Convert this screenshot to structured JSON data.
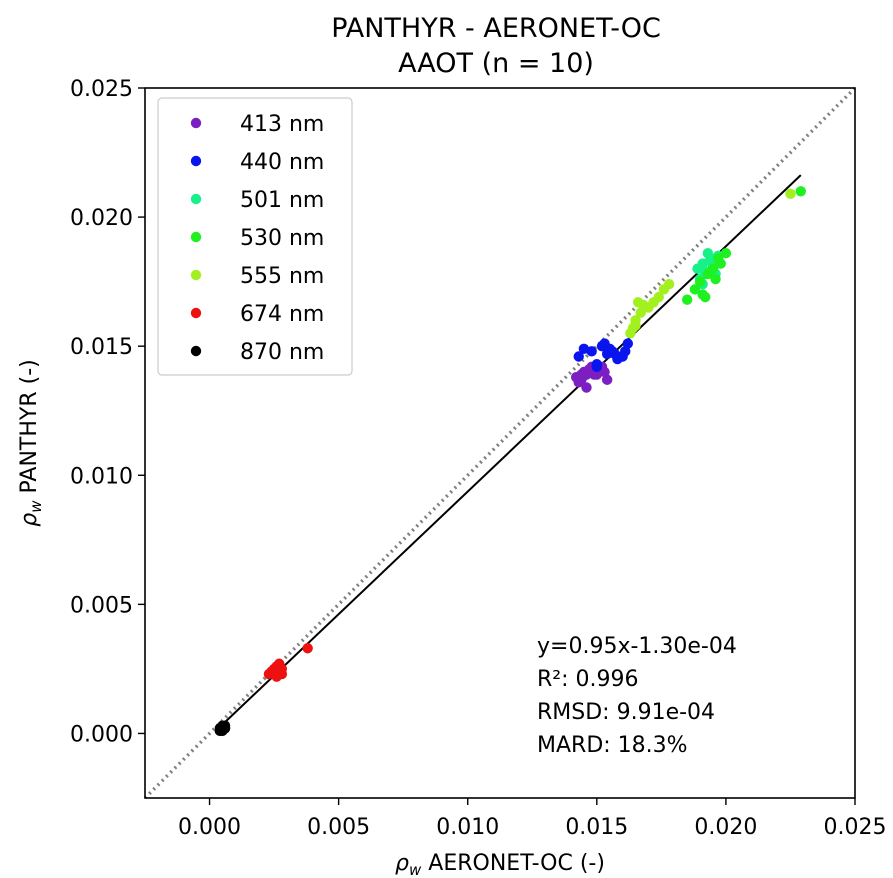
{
  "chart_data": {
    "type": "scatter",
    "title": "PANTHYR - AERONET-OC",
    "subtitle": "AAOT (n = 10)",
    "xlabel_symbol": "ρ",
    "xlabel_sub": "w",
    "xlabel_text": " AERONET-OC (-)",
    "ylabel_symbol": "ρ",
    "ylabel_sub": "w",
    "ylabel_text": " PANTHYR (-)",
    "xlim": [
      -0.0025,
      0.025
    ],
    "ylim": [
      -0.0025,
      0.025
    ],
    "x_ticks": [
      0.0,
      0.005,
      0.01,
      0.015,
      0.02,
      0.025
    ],
    "x_tick_labels": [
      "0.000",
      "0.005",
      "0.010",
      "0.015",
      "0.020",
      "0.025"
    ],
    "y_ticks": [
      0.0,
      0.005,
      0.01,
      0.015,
      0.02,
      0.025
    ],
    "y_tick_labels": [
      "0.000",
      "0.005",
      "0.010",
      "0.015",
      "0.020",
      "0.025"
    ],
    "grid": false,
    "legend_position": "top-left",
    "one_to_one_line": {
      "style": "dotted",
      "color": "#808080"
    },
    "fit_line": {
      "slope": 0.95,
      "intercept": -0.00013,
      "x_range": [
        0.0004,
        0.0229
      ],
      "color": "#000000"
    },
    "stats": [
      "y=0.95x-1.30e-04",
      "R²: 0.996",
      "RMSD: 9.91e-04",
      "MARD: 18.3%"
    ],
    "series": [
      {
        "name": "413 nm",
        "color": "#7b1fc2",
        "x": [
          0.0142,
          0.0143,
          0.0144,
          0.0145,
          0.0146,
          0.0147,
          0.0148,
          0.0149,
          0.015,
          0.0151,
          0.0152,
          0.0153,
          0.0154,
          0.0146,
          0.0144,
          0.0148,
          0.015
        ],
        "y": [
          0.0138,
          0.0136,
          0.0139,
          0.014,
          0.0134,
          0.0141,
          0.0142,
          0.0139,
          0.014,
          0.0141,
          0.0142,
          0.014,
          0.0137,
          0.0139,
          0.0137,
          0.0141,
          0.0139
        ]
      },
      {
        "name": "440 nm",
        "color": "#0a14ee",
        "x": [
          0.0143,
          0.0145,
          0.0148,
          0.015,
          0.0152,
          0.0153,
          0.0154,
          0.0155,
          0.0157,
          0.0158,
          0.016,
          0.0161,
          0.0162,
          0.015,
          0.0156
        ],
        "y": [
          0.0146,
          0.0149,
          0.0148,
          0.0143,
          0.015,
          0.0151,
          0.0147,
          0.0149,
          0.0147,
          0.0145,
          0.0146,
          0.0148,
          0.0151,
          0.0142,
          0.0148
        ]
      },
      {
        "name": "501 nm",
        "color": "#18f08a",
        "x": [
          0.0189,
          0.019,
          0.0191,
          0.0192,
          0.0193,
          0.0194,
          0.0195,
          0.0196,
          0.0197,
          0.0191,
          0.0194,
          0.0192
        ],
        "y": [
          0.018,
          0.0176,
          0.0182,
          0.0178,
          0.0186,
          0.0183,
          0.0181,
          0.0178,
          0.0185,
          0.0174,
          0.0184,
          0.0179
        ]
      },
      {
        "name": "530 nm",
        "color": "#1ff01f",
        "x": [
          0.0185,
          0.0188,
          0.019,
          0.0191,
          0.0192,
          0.0193,
          0.0195,
          0.0196,
          0.0198,
          0.02,
          0.0229,
          0.0197
        ],
        "y": [
          0.0168,
          0.0172,
          0.0175,
          0.017,
          0.0169,
          0.0178,
          0.018,
          0.0176,
          0.0182,
          0.0186,
          0.021,
          0.0184
        ]
      },
      {
        "name": "555 nm",
        "color": "#a2f01e",
        "x": [
          0.0163,
          0.0164,
          0.0165,
          0.0166,
          0.0167,
          0.0168,
          0.017,
          0.0172,
          0.0174,
          0.0176,
          0.0178,
          0.0225,
          0.0165
        ],
        "y": [
          0.0155,
          0.0157,
          0.0158,
          0.0167,
          0.0163,
          0.0166,
          0.0165,
          0.0167,
          0.0169,
          0.0172,
          0.0174,
          0.0209,
          0.016
        ]
      },
      {
        "name": "674 nm",
        "color": "#ee1111",
        "x": [
          0.0023,
          0.0024,
          0.0025,
          0.0026,
          0.0027,
          0.0027,
          0.0028,
          0.0028,
          0.0026,
          0.0038,
          0.0025
        ],
        "y": [
          0.0023,
          0.0024,
          0.0025,
          0.0026,
          0.0024,
          0.0027,
          0.0023,
          0.0025,
          0.0022,
          0.0033,
          0.0024
        ]
      },
      {
        "name": "870 nm",
        "color": "#000000",
        "x": [
          0.0004,
          0.0005,
          0.0005,
          0.0006,
          0.0006,
          0.0004,
          0.0005,
          0.0006
        ],
        "y": [
          0.0002,
          0.0002,
          0.0003,
          0.0002,
          0.0003,
          0.0001,
          0.0001,
          0.0002
        ]
      }
    ]
  }
}
